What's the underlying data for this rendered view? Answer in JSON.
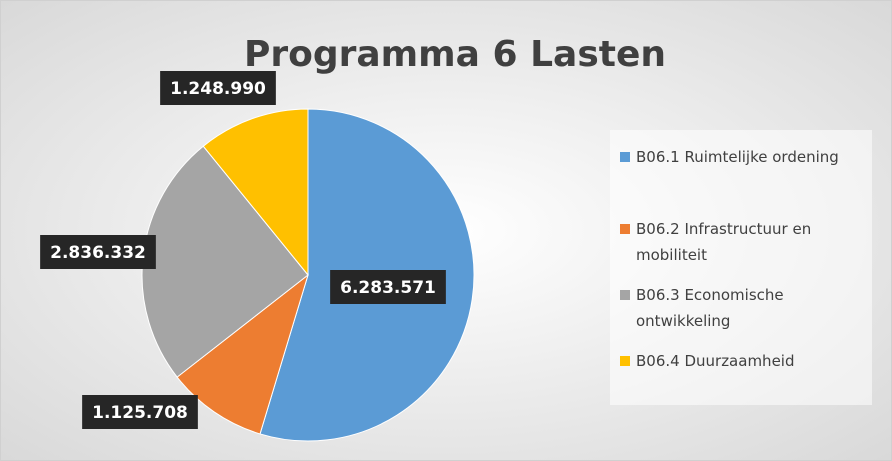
{
  "chart_data": {
    "type": "pie",
    "title": "Programma 6 Lasten",
    "categories": [
      "B06.1 Ruimtelijke ordening",
      "B06.2 Infrastructuur en mobiliteit",
      "B06.3 Economische ontwikkeling",
      "B06.4 Duurzaamheid"
    ],
    "values": [
      6283571,
      1125708,
      2836332,
      1248990
    ],
    "value_labels": [
      "6.283.571",
      "1.125.708",
      "2.836.332",
      "1.248.990"
    ],
    "colors": [
      "#5b9bd5",
      "#ed7d31",
      "#a5a5a5",
      "#ffc000"
    ],
    "legend": "right"
  }
}
